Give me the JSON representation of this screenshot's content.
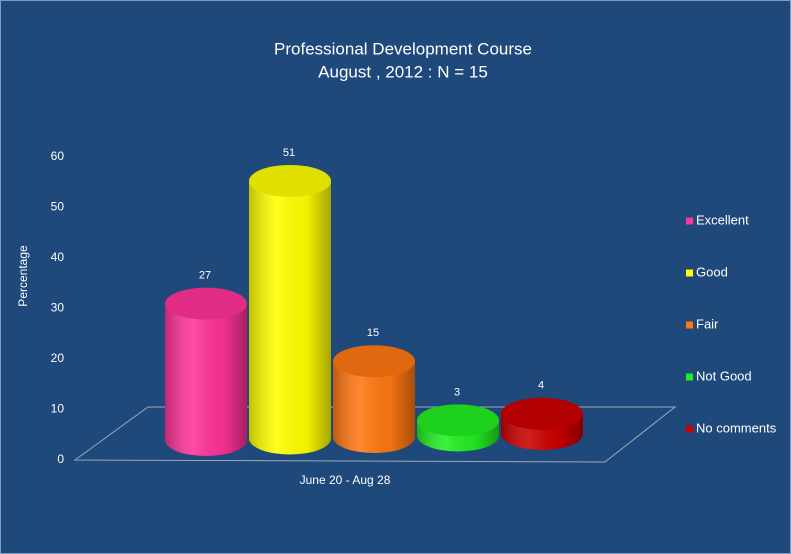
{
  "chart_data": {
    "type": "bar3d",
    "title": "Professional Development Course",
    "subtitle": "August , 2012 : N = 15",
    "y_label": "Percentage",
    "categories": [
      "June 20 - Aug 28"
    ],
    "series": [
      {
        "name": "Excellent",
        "color": "#ff3399",
        "values": [
          27
        ]
      },
      {
        "name": "Good",
        "color": "#ffff00",
        "values": [
          51
        ]
      },
      {
        "name": "Fair",
        "color": "#ff7711",
        "values": [
          15
        ]
      },
      {
        "name": "Not Good",
        "color": "#22ee22",
        "values": [
          3
        ]
      },
      {
        "name": "No comments",
        "color": "#cc0000",
        "values": [
          4
        ]
      }
    ],
    "ylim": [
      0,
      60
    ],
    "yticks": [
      0,
      10,
      20,
      30,
      40,
      50,
      60
    ],
    "grid": false,
    "legend": "right"
  }
}
